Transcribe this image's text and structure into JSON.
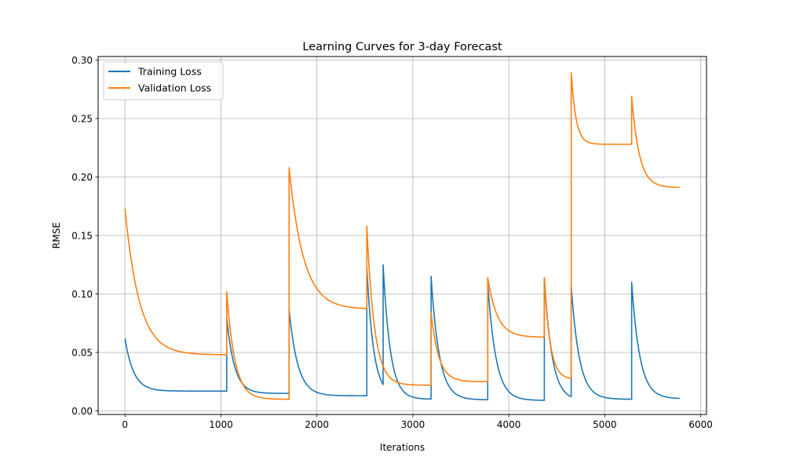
{
  "chart_data": {
    "type": "line",
    "title": "Learning Curves for 3-day Forecast",
    "xlabel": "Iterations",
    "ylabel": "RMSE",
    "xlim": [
      -280,
      6060
    ],
    "ylim": [
      -0.003,
      0.303
    ],
    "xticks": [
      0,
      1000,
      2000,
      3000,
      4000,
      5000,
      6000
    ],
    "xtick_labels": [
      "0",
      "1000",
      "2000",
      "3000",
      "4000",
      "5000",
      "6000"
    ],
    "yticks": [
      0.0,
      0.05,
      0.1,
      0.15,
      0.2,
      0.25,
      0.3
    ],
    "ytick_labels": [
      "0.00",
      "0.05",
      "0.10",
      "0.15",
      "0.20",
      "0.25",
      "0.30"
    ],
    "grid": true,
    "legend_position": "upper-left",
    "series": [
      {
        "name": "Training Loss",
        "color": "#1f77b4",
        "segments": [
          {
            "x0": 0,
            "x1": 1060,
            "start": 0.062,
            "end": 0.017,
            "tau": 90
          },
          {
            "x0": 1060,
            "x1": 1710,
            "start": 0.08,
            "end": 0.015,
            "tau": 80
          },
          {
            "x0": 1710,
            "x1": 2520,
            "start": 0.087,
            "end": 0.013,
            "tau": 90
          },
          {
            "x0": 2520,
            "x1": 2690,
            "start": 0.123,
            "end": 0.013,
            "tau": 70
          },
          {
            "x0": 2690,
            "x1": 3190,
            "start": 0.125,
            "end": 0.01,
            "tau": 75
          },
          {
            "x0": 3190,
            "x1": 3780,
            "start": 0.115,
            "end": 0.0095,
            "tau": 85
          },
          {
            "x0": 3780,
            "x1": 4370,
            "start": 0.11,
            "end": 0.009,
            "tau": 85
          },
          {
            "x0": 4370,
            "x1": 4650,
            "start": 0.114,
            "end": 0.009,
            "tau": 80
          },
          {
            "x0": 4650,
            "x1": 5280,
            "start": 0.107,
            "end": 0.01,
            "tau": 85
          },
          {
            "x0": 5280,
            "x1": 5780,
            "start": 0.11,
            "end": 0.0105,
            "tau": 85
          }
        ]
      },
      {
        "name": "Validation Loss",
        "color": "#ff7f0e",
        "segments": [
          {
            "x0": 0,
            "x1": 1060,
            "start": 0.173,
            "end": 0.048,
            "tau": 150
          },
          {
            "x0": 1060,
            "x1": 1710,
            "start": 0.102,
            "end": 0.01,
            "tau": 85
          },
          {
            "x0": 1710,
            "x1": 2520,
            "start": 0.208,
            "end": 0.087,
            "tau": 150
          },
          {
            "x0": 2520,
            "x1": 3190,
            "start": 0.158,
            "end": 0.022,
            "tau": 80
          },
          {
            "x0": 3190,
            "x1": 3780,
            "start": 0.084,
            "end": 0.025,
            "tau": 80
          },
          {
            "x0": 3780,
            "x1": 4370,
            "start": 0.114,
            "end": 0.063,
            "tau": 100
          },
          {
            "x0": 4370,
            "x1": 4650,
            "start": 0.114,
            "end": 0.027,
            "tau": 60
          },
          {
            "x0": 4650,
            "x1": 5280,
            "start": 0.289,
            "end": 0.228,
            "tau": 50
          },
          {
            "x0": 5280,
            "x1": 5780,
            "start": 0.269,
            "end": 0.191,
            "tau": 80
          }
        ]
      }
    ]
  }
}
